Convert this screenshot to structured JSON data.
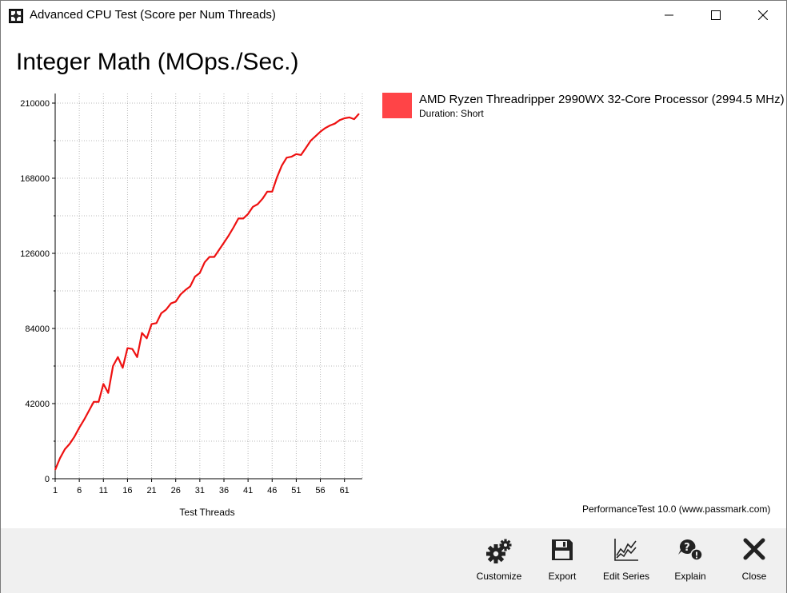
{
  "window": {
    "title": "Advanced CPU Test (Score per Num Threads)",
    "icon": "passmark-app-icon"
  },
  "title_buttons": {
    "minimize": "minimize-icon",
    "maximize": "maximize-icon",
    "close": "close-icon"
  },
  "chart_data": {
    "type": "line",
    "title": "Integer Math (MOps./Sec.)",
    "xlabel": "Test Threads",
    "ylabel": "",
    "xlim": [
      1,
      65
    ],
    "ylim": [
      0,
      210000
    ],
    "yticks": [
      "0",
      "42000",
      "84000",
      "126000",
      "168000",
      "210000"
    ],
    "xticks": [
      "1",
      "6",
      "11",
      "16",
      "21",
      "26",
      "31",
      "36",
      "41",
      "46",
      "51",
      "56",
      "61"
    ],
    "grid": true,
    "legend_position": "right",
    "series": [
      {
        "name": "AMD Ryzen Threadripper 2990WX 32-Core Processor (2994.5 MHz)",
        "color": "#ee1111",
        "x": [
          1,
          2,
          3,
          4,
          5,
          6,
          7,
          8,
          9,
          10,
          11,
          12,
          13,
          14,
          15,
          16,
          17,
          18,
          19,
          20,
          21,
          22,
          23,
          24,
          25,
          26,
          27,
          28,
          29,
          30,
          31,
          32,
          33,
          34,
          35,
          36,
          37,
          38,
          39,
          40,
          41,
          42,
          43,
          44,
          45,
          46,
          47,
          48,
          49,
          50,
          51,
          52,
          53,
          54,
          55,
          56,
          57,
          58,
          59,
          60,
          61,
          62,
          63,
          64
        ],
        "y": [
          5000,
          11500,
          16500,
          19500,
          23500,
          28500,
          33000,
          38000,
          43000,
          43000,
          53000,
          48000,
          63000,
          68000,
          62000,
          73000,
          72500,
          68000,
          81500,
          78500,
          86500,
          87000,
          92500,
          94500,
          98000,
          99000,
          103000,
          105500,
          107500,
          113000,
          115000,
          121000,
          124000,
          124000,
          128000,
          132000,
          136000,
          140500,
          145500,
          145500,
          148000,
          152000,
          153500,
          156500,
          160500,
          160500,
          168500,
          175000,
          179500,
          180000,
          181500,
          181000,
          185000,
          189000,
          191500,
          194000,
          196000,
          197500,
          198500,
          200500,
          201500,
          202000,
          201000,
          204000
        ]
      }
    ]
  },
  "legend": {
    "name": "AMD Ryzen Threadripper 2990WX 32-Core Processor (2994.5 MHz)",
    "duration": "Duration: Short",
    "swatch_color": "#ff4447"
  },
  "credit": "PerformanceTest 10.0 (www.passmark.com)",
  "toolbar": {
    "customize": {
      "label": "Customize",
      "icon": "gears-icon"
    },
    "export": {
      "label": "Export",
      "icon": "floppy-disk-icon"
    },
    "edit_series": {
      "label": "Edit Series",
      "icon": "line-chart-icon"
    },
    "explain": {
      "label": "Explain",
      "icon": "question-speech-icon"
    },
    "close": {
      "label": "Close",
      "icon": "x-icon"
    }
  }
}
